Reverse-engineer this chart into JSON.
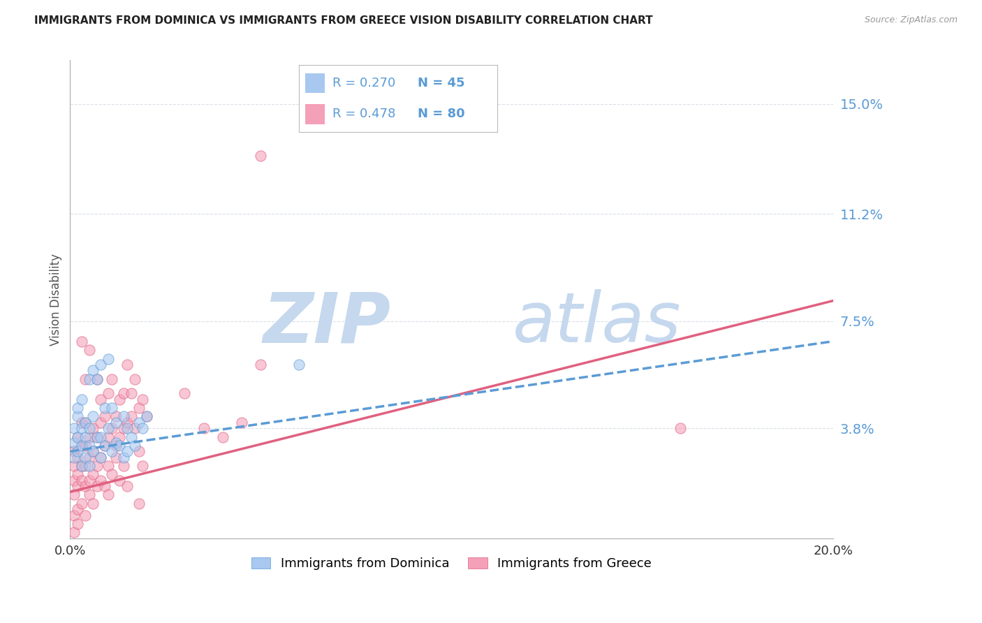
{
  "title": "IMMIGRANTS FROM DOMINICA VS IMMIGRANTS FROM GREECE VISION DISABILITY CORRELATION CHART",
  "source": "Source: ZipAtlas.com",
  "ylabel": "Vision Disability",
  "xlim": [
    0.0,
    0.2
  ],
  "ylim": [
    0.0,
    0.165
  ],
  "yticks": [
    0.038,
    0.075,
    0.112,
    0.15
  ],
  "ytick_labels": [
    "3.8%",
    "7.5%",
    "11.2%",
    "15.0%"
  ],
  "xticks": [
    0.0,
    0.04,
    0.08,
    0.12,
    0.16,
    0.2
  ],
  "xtick_labels": [
    "0.0%",
    "",
    "",
    "",
    "",
    "20.0%"
  ],
  "color_dominica": "#a8c8f0",
  "color_greece": "#f4a0b8",
  "color_trend_dominica": "#5b9bd5",
  "color_trend_greece": "#e06080",
  "color_label_blue": "#5b9bd5",
  "color_gridlines": "#d8dfe8",
  "R_dominica": 0.27,
  "N_dominica": 45,
  "R_greece": 0.478,
  "N_greece": 80,
  "legend_label_dominica": "Immigrants from Dominica",
  "legend_label_greece": "Immigrants from Greece",
  "watermark_zip": "ZIP",
  "watermark_atlas": "atlas",
  "trend_dom_x0": 0.0,
  "trend_dom_y0": 0.03,
  "trend_dom_x1": 0.2,
  "trend_dom_y1": 0.068,
  "trend_gre_x0": 0.0,
  "trend_gre_y0": 0.016,
  "trend_gre_x1": 0.2,
  "trend_gre_y1": 0.082,
  "dominica_points": [
    [
      0.001,
      0.028
    ],
    [
      0.001,
      0.033
    ],
    [
      0.001,
      0.038
    ],
    [
      0.002,
      0.03
    ],
    [
      0.002,
      0.035
    ],
    [
      0.002,
      0.042
    ],
    [
      0.002,
      0.045
    ],
    [
      0.003,
      0.025
    ],
    [
      0.003,
      0.032
    ],
    [
      0.003,
      0.038
    ],
    [
      0.003,
      0.048
    ],
    [
      0.004,
      0.028
    ],
    [
      0.004,
      0.035
    ],
    [
      0.004,
      0.04
    ],
    [
      0.005,
      0.025
    ],
    [
      0.005,
      0.032
    ],
    [
      0.005,
      0.038
    ],
    [
      0.005,
      0.055
    ],
    [
      0.006,
      0.03
    ],
    [
      0.006,
      0.042
    ],
    [
      0.006,
      0.058
    ],
    [
      0.007,
      0.035
    ],
    [
      0.007,
      0.055
    ],
    [
      0.008,
      0.028
    ],
    [
      0.008,
      0.035
    ],
    [
      0.008,
      0.06
    ],
    [
      0.009,
      0.032
    ],
    [
      0.009,
      0.045
    ],
    [
      0.01,
      0.038
    ],
    [
      0.01,
      0.062
    ],
    [
      0.011,
      0.03
    ],
    [
      0.011,
      0.045
    ],
    [
      0.012,
      0.033
    ],
    [
      0.012,
      0.04
    ],
    [
      0.013,
      0.032
    ],
    [
      0.014,
      0.028
    ],
    [
      0.014,
      0.042
    ],
    [
      0.015,
      0.03
    ],
    [
      0.015,
      0.038
    ],
    [
      0.016,
      0.035
    ],
    [
      0.017,
      0.032
    ],
    [
      0.018,
      0.04
    ],
    [
      0.019,
      0.038
    ],
    [
      0.02,
      0.042
    ],
    [
      0.06,
      0.06
    ]
  ],
  "greece_points": [
    [
      0.001,
      0.015
    ],
    [
      0.001,
      0.02
    ],
    [
      0.001,
      0.025
    ],
    [
      0.001,
      0.03
    ],
    [
      0.001,
      0.008
    ],
    [
      0.002,
      0.018
    ],
    [
      0.002,
      0.022
    ],
    [
      0.002,
      0.028
    ],
    [
      0.002,
      0.035
    ],
    [
      0.002,
      0.01
    ],
    [
      0.003,
      0.02
    ],
    [
      0.003,
      0.025
    ],
    [
      0.003,
      0.032
    ],
    [
      0.003,
      0.04
    ],
    [
      0.003,
      0.012
    ],
    [
      0.004,
      0.018
    ],
    [
      0.004,
      0.025
    ],
    [
      0.004,
      0.032
    ],
    [
      0.004,
      0.04
    ],
    [
      0.004,
      0.008
    ],
    [
      0.005,
      0.02
    ],
    [
      0.005,
      0.028
    ],
    [
      0.005,
      0.035
    ],
    [
      0.005,
      0.065
    ],
    [
      0.005,
      0.015
    ],
    [
      0.006,
      0.022
    ],
    [
      0.006,
      0.03
    ],
    [
      0.006,
      0.038
    ],
    [
      0.006,
      0.012
    ],
    [
      0.007,
      0.025
    ],
    [
      0.007,
      0.035
    ],
    [
      0.007,
      0.055
    ],
    [
      0.007,
      0.018
    ],
    [
      0.008,
      0.028
    ],
    [
      0.008,
      0.04
    ],
    [
      0.008,
      0.048
    ],
    [
      0.008,
      0.02
    ],
    [
      0.009,
      0.032
    ],
    [
      0.009,
      0.042
    ],
    [
      0.009,
      0.018
    ],
    [
      0.01,
      0.035
    ],
    [
      0.01,
      0.05
    ],
    [
      0.01,
      0.025
    ],
    [
      0.01,
      0.015
    ],
    [
      0.011,
      0.038
    ],
    [
      0.011,
      0.055
    ],
    [
      0.011,
      0.022
    ],
    [
      0.012,
      0.032
    ],
    [
      0.012,
      0.042
    ],
    [
      0.012,
      0.028
    ],
    [
      0.013,
      0.035
    ],
    [
      0.013,
      0.048
    ],
    [
      0.013,
      0.02
    ],
    [
      0.014,
      0.038
    ],
    [
      0.014,
      0.05
    ],
    [
      0.014,
      0.025
    ],
    [
      0.015,
      0.04
    ],
    [
      0.015,
      0.06
    ],
    [
      0.015,
      0.018
    ],
    [
      0.016,
      0.042
    ],
    [
      0.016,
      0.05
    ],
    [
      0.017,
      0.038
    ],
    [
      0.017,
      0.055
    ],
    [
      0.018,
      0.045
    ],
    [
      0.018,
      0.03
    ],
    [
      0.018,
      0.012
    ],
    [
      0.019,
      0.048
    ],
    [
      0.019,
      0.025
    ],
    [
      0.02,
      0.042
    ],
    [
      0.03,
      0.05
    ],
    [
      0.035,
      0.038
    ],
    [
      0.04,
      0.035
    ],
    [
      0.045,
      0.04
    ],
    [
      0.05,
      0.06
    ],
    [
      0.003,
      0.068
    ],
    [
      0.004,
      0.055
    ],
    [
      0.16,
      0.038
    ],
    [
      0.05,
      0.132
    ],
    [
      0.001,
      0.002
    ],
    [
      0.002,
      0.005
    ]
  ]
}
